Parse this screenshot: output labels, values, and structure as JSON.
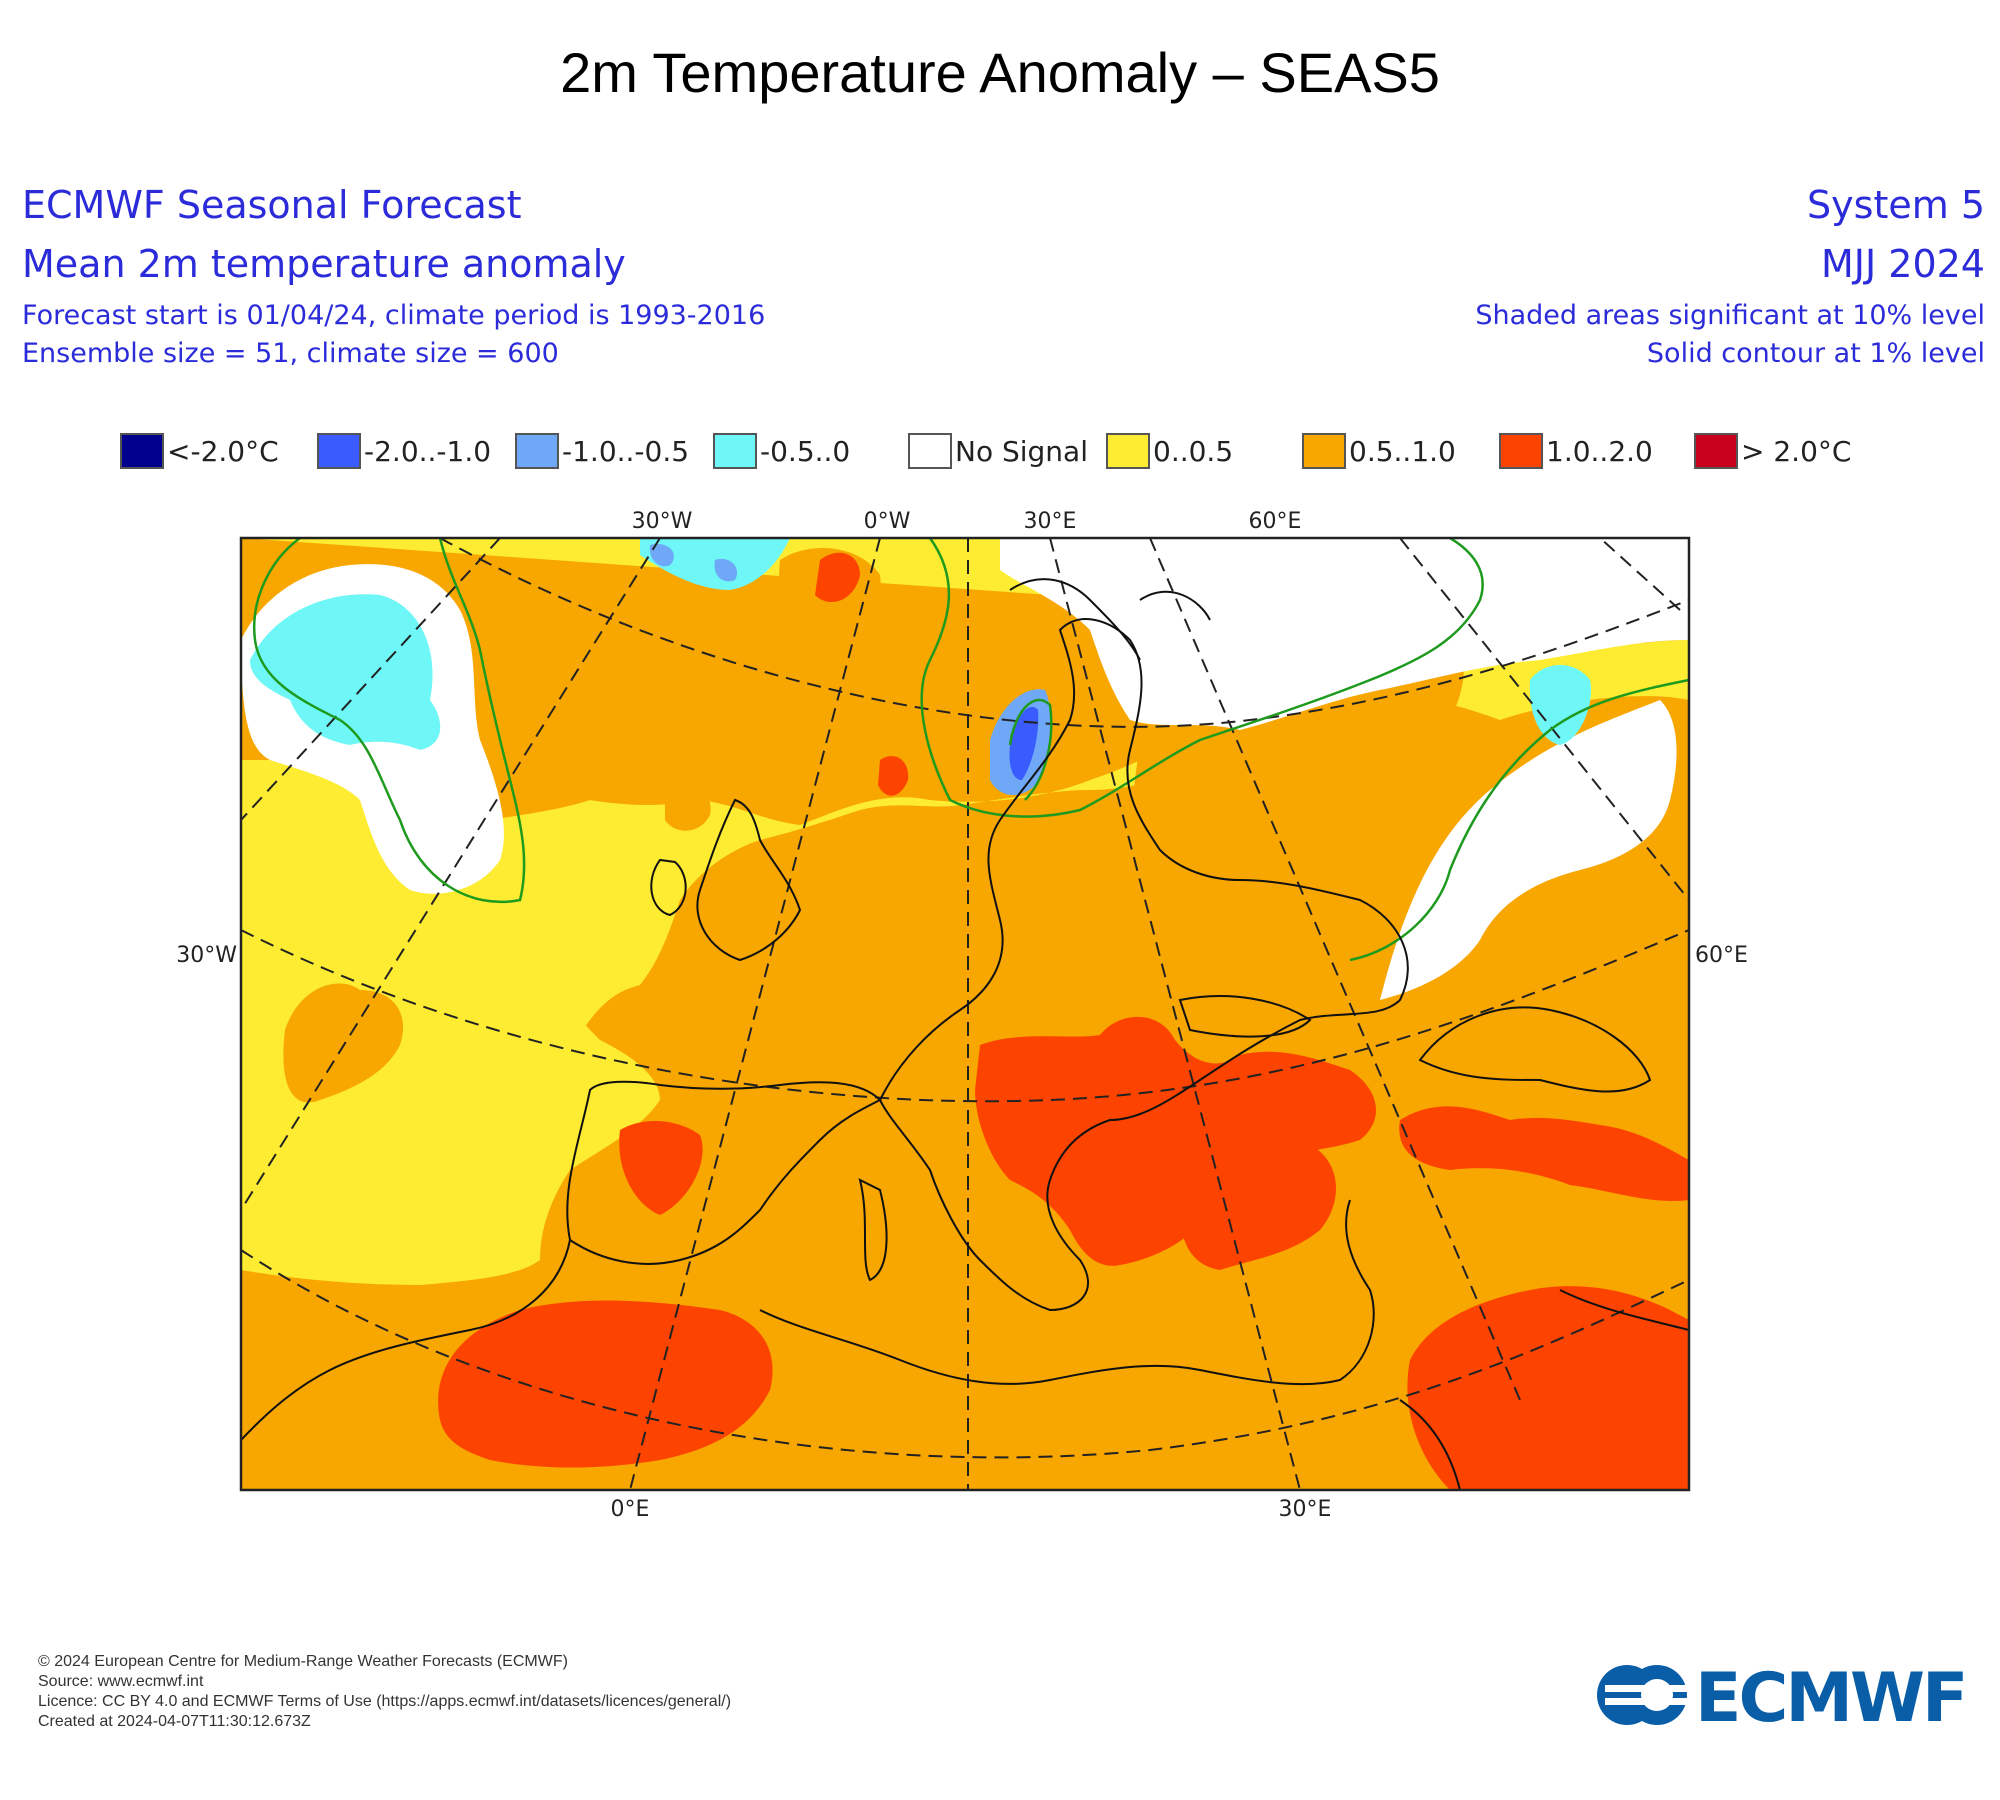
{
  "title": "2m Temperature Anomaly – SEAS5",
  "header": {
    "left": [
      "ECMWF Seasonal Forecast",
      "Mean 2m temperature anomaly",
      "Forecast start is 01/04/24, climate period is 1993-2016",
      "Ensemble size = 51, climate size = 600"
    ],
    "right": [
      "System 5",
      "MJJ 2024",
      "Shaded areas significant at 10% level",
      "Solid contour at 1% level"
    ]
  },
  "legend": [
    {
      "label": "<-2.0°C",
      "color": "#00008c"
    },
    {
      "label": "-2.0..-1.0",
      "color": "#3a5cff"
    },
    {
      "label": "-1.0..-0.5",
      "color": "#6ea8f7"
    },
    {
      "label": "-0.5..0",
      "color": "#6ff7f7"
    },
    {
      "label": "No Signal",
      "color": "#ffffff"
    },
    {
      "label": "0..0.5",
      "color": "#fdec32"
    },
    {
      "label": "0.5..1.0",
      "color": "#f8a600"
    },
    {
      "label": "1.0..2.0",
      "color": "#fc4400"
    },
    {
      "label": "> 2.0°C",
      "color": "#c8001e"
    }
  ],
  "axis_labels": {
    "top": [
      "30°W",
      "0°W",
      "30°E",
      "60°E"
    ],
    "left": "30°W",
    "right": "60°E",
    "bottom": [
      "0°E",
      "30°E"
    ]
  },
  "footer": [
    "© 2024 European Centre for Medium-Range Weather Forecasts (ECMWF)",
    "Source: www.ecmwf.int",
    "Licence: CC BY 4.0 and ECMWF Terms of Use (https://apps.ecmwf.int/datasets/licences/general/)",
    "Created at 2024-04-07T11:30:12.673Z"
  ],
  "logo_text": "ECMWF",
  "colors": {
    "header_text": "#2b2bd9",
    "logo": "#0a5ea8",
    "significance_contour": "#1e9a1e"
  }
}
